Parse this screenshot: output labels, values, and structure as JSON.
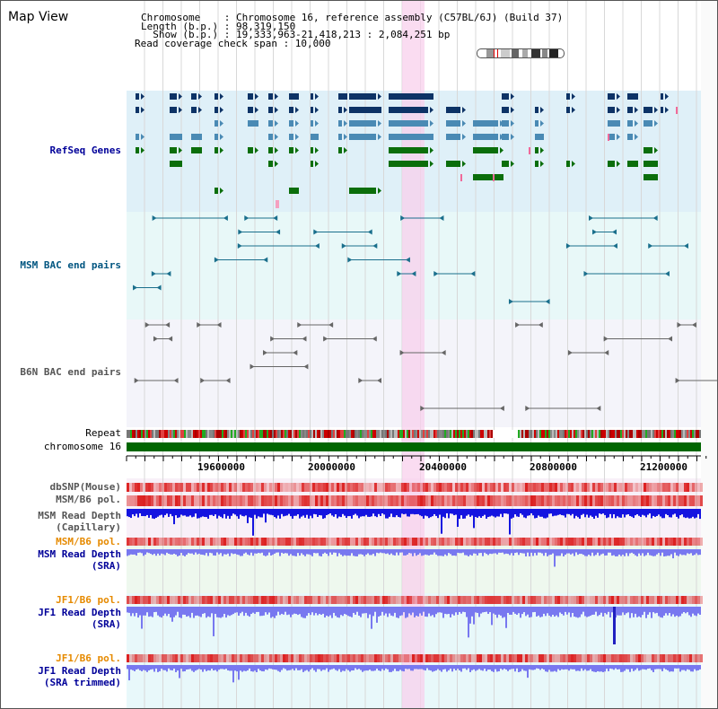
{
  "header": {
    "title": "Map View",
    "info_lines": [
      "Chromosome    : Chromosome 16, reference assembly (C57BL/6J) (Build 37)",
      "Length (b.p.) : 98,319,150",
      "  Show (b.p.) : 19,333,963-21,418,213 : 2,084,251 bp",
      "Read coverage check span : 10,000"
    ]
  },
  "tracks": {
    "refseq": {
      "label": "RefSeq Genes",
      "color": "#000099"
    },
    "msm_bac": {
      "label": "MSM BAC end pairs",
      "color": "#005580"
    },
    "b6n_bac": {
      "label": "B6N BAC end pairs",
      "color": "#555555"
    },
    "repeat": {
      "label": "Repeat"
    },
    "chromosome": {
      "label": "chromosome 16"
    },
    "dbsnp": {
      "label": "dbSNP(Mouse)",
      "color": "#555555"
    },
    "msm_b6_pol": {
      "label": "MSM/B6 pol.",
      "color": "#555555"
    },
    "msm_depth_cap": {
      "label_line1": "MSM Read Depth",
      "label_line2": "(Capillary)",
      "color": "#555555"
    },
    "msm_b6_pol_2": {
      "label": "MSM/B6 pol.",
      "color": "#e68a00"
    },
    "msm_depth_sra": {
      "label_line1": "MSM Read Depth",
      "label_line2": "(SRA)",
      "color": "#000099"
    },
    "jf1_b6_pol": {
      "label": "JF1/B6 pol.",
      "color": "#e68a00"
    },
    "jf1_depth_sra": {
      "label_line1": "JF1 Read Depth",
      "label_line2": "(SRA)",
      "color": "#000099"
    },
    "jf1_b6_pol_2": {
      "label": "JF1/B6 pol.",
      "color": "#e68a00"
    },
    "jf1_depth_trim": {
      "label_line1": "JF1 Read Depth",
      "label_line2": "(SRA trimmed)",
      "color": "#000099"
    }
  },
  "axis": {
    "ticks": [
      "19600000",
      "20000000",
      "20400000",
      "20800000",
      "21200000"
    ]
  },
  "colors": {
    "refseq_bg": "#dff0f8",
    "msm_bg": "#e8f8f8",
    "b6n_bg": "#f4f4fa",
    "highlight": "#f8d0ec",
    "gene_navy": "#0d3366",
    "gene_blue": "#4a8ab4",
    "gene_green": "#0b6e0b",
    "chromosome_bar": "#006600",
    "depth_dark": "#1414e0",
    "depth_light": "#7878f0"
  }
}
